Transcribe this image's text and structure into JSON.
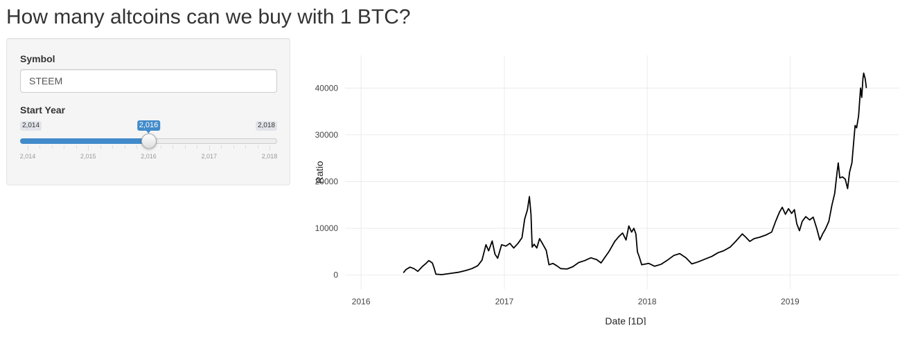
{
  "app": {
    "title": "How many altcoins can we buy with 1 BTC?"
  },
  "sidebar": {
    "symbol": {
      "label": "Symbol",
      "value": "STEEM"
    },
    "start_year": {
      "label": "Start Year",
      "min": 2014,
      "max": 2018,
      "value": 2016,
      "min_label": "2,014",
      "max_label": "2,018",
      "value_label": "2,016",
      "grid_labels": [
        "2,014",
        "2,015",
        "2,016",
        "2,017",
        "2,018"
      ],
      "accent": "#428bca"
    }
  },
  "chart_data": {
    "type": "line",
    "xlabel": "Date [1D]",
    "ylabel": "Ratio",
    "xlim": [
      "2015-11-21",
      "2019-10-07"
    ],
    "ylim": [
      -3000,
      47000
    ],
    "x_ticks": [
      "2016",
      "2017",
      "2018",
      "2019"
    ],
    "y_ticks": [
      "0",
      "10000",
      "20000",
      "30000",
      "40000"
    ],
    "grid": true,
    "line_color": "#000000",
    "series": [
      {
        "points": [
          [
            "2016-04-18",
            500
          ],
          [
            "2016-04-25",
            1200
          ],
          [
            "2016-05-05",
            1700
          ],
          [
            "2016-05-15",
            1400
          ],
          [
            "2016-05-25",
            800
          ],
          [
            "2016-06-05",
            1800
          ],
          [
            "2016-06-15",
            2500
          ],
          [
            "2016-06-22",
            3100
          ],
          [
            "2016-07-01",
            2600
          ],
          [
            "2016-07-06",
            1400
          ],
          [
            "2016-07-10",
            200
          ],
          [
            "2016-07-25",
            100
          ],
          [
            "2016-08-15",
            350
          ],
          [
            "2016-09-05",
            600
          ],
          [
            "2016-09-25",
            1000
          ],
          [
            "2016-10-10",
            1400
          ],
          [
            "2016-10-25",
            2000
          ],
          [
            "2016-11-05",
            3200
          ],
          [
            "2016-11-15",
            6500
          ],
          [
            "2016-11-22",
            5200
          ],
          [
            "2016-12-01",
            7300
          ],
          [
            "2016-12-08",
            4500
          ],
          [
            "2016-12-15",
            3600
          ],
          [
            "2016-12-25",
            6500
          ],
          [
            "2017-01-05",
            6200
          ],
          [
            "2017-01-15",
            6800
          ],
          [
            "2017-01-25",
            5800
          ],
          [
            "2017-02-05",
            6800
          ],
          [
            "2017-02-15",
            8000
          ],
          [
            "2017-02-22",
            12000
          ],
          [
            "2017-03-01",
            14000
          ],
          [
            "2017-03-06",
            16800
          ],
          [
            "2017-03-10",
            13000
          ],
          [
            "2017-03-13",
            6000
          ],
          [
            "2017-03-18",
            6600
          ],
          [
            "2017-03-25",
            5800
          ],
          [
            "2017-04-01",
            7800
          ],
          [
            "2017-04-10",
            6500
          ],
          [
            "2017-04-18",
            5300
          ],
          [
            "2017-04-25",
            2200
          ],
          [
            "2017-05-05",
            2500
          ],
          [
            "2017-05-15",
            2000
          ],
          [
            "2017-05-25",
            1400
          ],
          [
            "2017-06-10",
            1300
          ],
          [
            "2017-06-25",
            1800
          ],
          [
            "2017-07-10",
            2700
          ],
          [
            "2017-07-25",
            3100
          ],
          [
            "2017-08-10",
            3700
          ],
          [
            "2017-08-25",
            3300
          ],
          [
            "2017-09-05",
            2600
          ],
          [
            "2017-09-15",
            3800
          ],
          [
            "2017-09-25",
            5000
          ],
          [
            "2017-10-10",
            7200
          ],
          [
            "2017-10-20",
            8200
          ],
          [
            "2017-10-30",
            9000
          ],
          [
            "2017-11-08",
            7500
          ],
          [
            "2017-11-15",
            10500
          ],
          [
            "2017-11-22",
            9200
          ],
          [
            "2017-11-28",
            10000
          ],
          [
            "2017-12-03",
            8800
          ],
          [
            "2017-12-07",
            5000
          ],
          [
            "2017-12-12",
            3800
          ],
          [
            "2017-12-18",
            2200
          ],
          [
            "2018-01-05",
            2500
          ],
          [
            "2018-01-20",
            1900
          ],
          [
            "2018-02-05",
            2300
          ],
          [
            "2018-02-20",
            3100
          ],
          [
            "2018-03-10",
            4200
          ],
          [
            "2018-03-25",
            4600
          ],
          [
            "2018-04-10",
            3700
          ],
          [
            "2018-04-25",
            2400
          ],
          [
            "2018-05-10",
            2800
          ],
          [
            "2018-05-25",
            3300
          ],
          [
            "2018-06-15",
            4000
          ],
          [
            "2018-07-01",
            4800
          ],
          [
            "2018-07-15",
            5200
          ],
          [
            "2018-08-01",
            6000
          ],
          [
            "2018-08-15",
            7200
          ],
          [
            "2018-09-01",
            8800
          ],
          [
            "2018-09-10",
            8100
          ],
          [
            "2018-09-20",
            7200
          ],
          [
            "2018-10-01",
            7800
          ],
          [
            "2018-10-15",
            8100
          ],
          [
            "2018-11-01",
            8600
          ],
          [
            "2018-11-15",
            9200
          ],
          [
            "2018-11-25",
            11500
          ],
          [
            "2018-12-05",
            13500
          ],
          [
            "2018-12-12",
            14500
          ],
          [
            "2018-12-20",
            13000
          ],
          [
            "2018-12-28",
            14200
          ],
          [
            "2019-01-05",
            13200
          ],
          [
            "2019-01-12",
            14000
          ],
          [
            "2019-01-18",
            11000
          ],
          [
            "2019-01-25",
            9500
          ],
          [
            "2019-02-01",
            11500
          ],
          [
            "2019-02-10",
            12500
          ],
          [
            "2019-02-20",
            11800
          ],
          [
            "2019-03-01",
            12400
          ],
          [
            "2019-03-10",
            10000
          ],
          [
            "2019-03-18",
            7500
          ],
          [
            "2019-03-25",
            8800
          ],
          [
            "2019-04-01",
            9800
          ],
          [
            "2019-04-10",
            11500
          ],
          [
            "2019-04-18",
            15000
          ],
          [
            "2019-04-25",
            17500
          ],
          [
            "2019-05-01",
            22000
          ],
          [
            "2019-05-04",
            24000
          ],
          [
            "2019-05-08",
            20800
          ],
          [
            "2019-05-15",
            21000
          ],
          [
            "2019-05-22",
            20500
          ],
          [
            "2019-05-28",
            18500
          ],
          [
            "2019-06-02",
            22000
          ],
          [
            "2019-06-08",
            24000
          ],
          [
            "2019-06-12",
            28000
          ],
          [
            "2019-06-16",
            32000
          ],
          [
            "2019-06-20",
            31500
          ],
          [
            "2019-06-25",
            34000
          ],
          [
            "2019-06-30",
            40000
          ],
          [
            "2019-07-03",
            38000
          ],
          [
            "2019-07-06",
            42000
          ],
          [
            "2019-07-08",
            43200
          ],
          [
            "2019-07-12",
            42000
          ],
          [
            "2019-07-15",
            40000
          ]
        ]
      }
    ]
  }
}
